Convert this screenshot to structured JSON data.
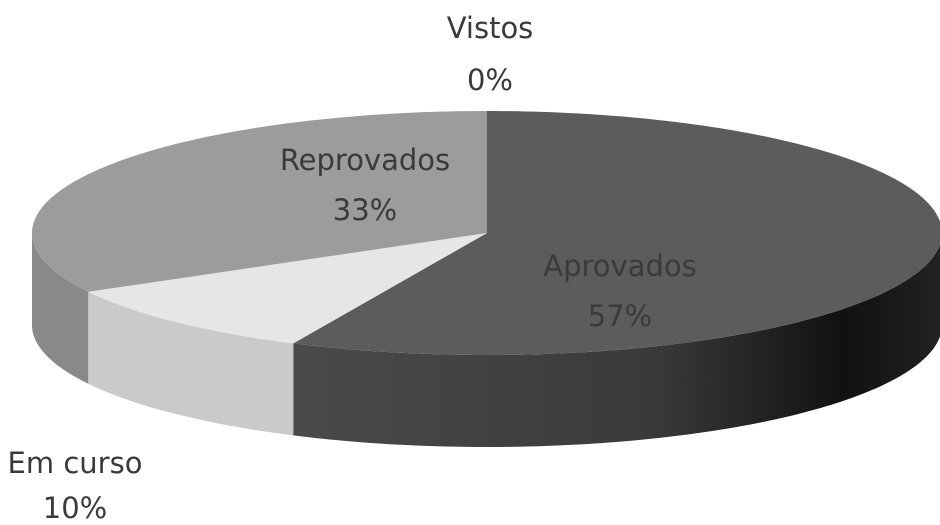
{
  "chart_data": {
    "type": "pie3d",
    "categories": [
      "Aprovados",
      "Em curso",
      "Reprovados",
      "Vistos"
    ],
    "values": [
      57,
      10,
      33,
      0
    ],
    "value_labels": [
      "57%",
      "10%",
      "33%",
      "0%"
    ],
    "colors": [
      "#5c5c5c",
      "#e6e6e6",
      "#9c9c9c",
      "#bdbdbd"
    ]
  }
}
